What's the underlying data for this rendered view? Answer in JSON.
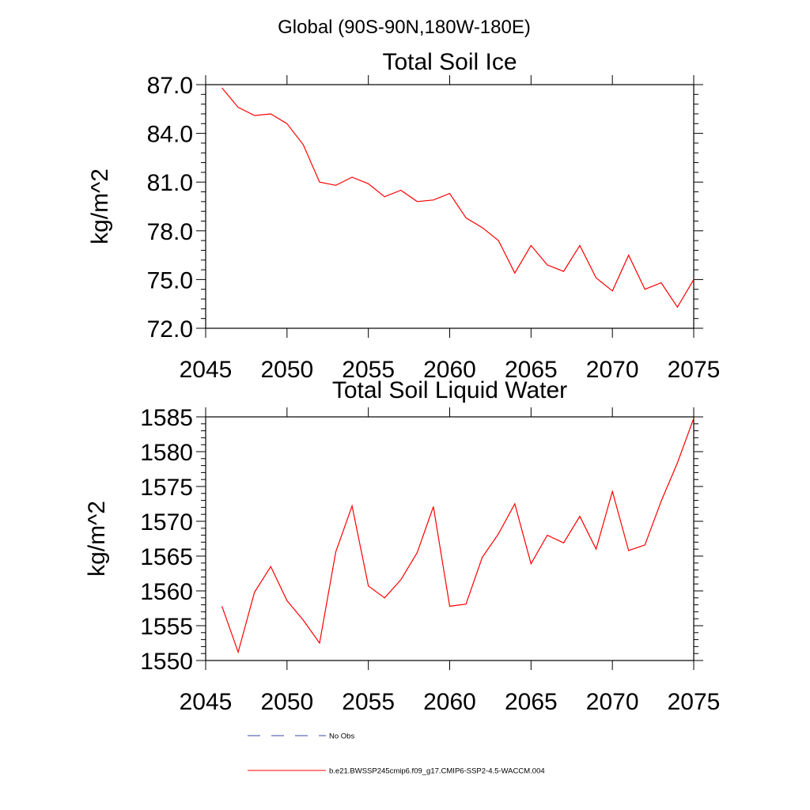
{
  "page": {
    "title": "Global (90S-90N,180W-180E)"
  },
  "legend": [
    {
      "label": "No Obs",
      "color": "#3b4aa0",
      "style": "dashed"
    },
    {
      "label": "b.e21.BWSSP245cmip6.f09_g17.CMIP6-SSP2-4.5-WACCM.004",
      "color": "#ff0000",
      "style": "solid"
    }
  ],
  "chart_data": [
    {
      "type": "line",
      "title": "Total Soil Ice",
      "xlabel": "",
      "ylabel": "kg/m^2",
      "xlim": [
        2045,
        2075
      ],
      "ylim": [
        72,
        87
      ],
      "xticks": [
        "2045",
        "2050",
        "2055",
        "2060",
        "2065",
        "2070",
        "2075"
      ],
      "yticks": [
        "72.0",
        "75.0",
        "78.0",
        "81.0",
        "84.0",
        "87.0"
      ],
      "series": [
        {
          "color": "#ff0000",
          "x": [
            2046,
            2047,
            2048,
            2049,
            2050,
            2051,
            2052,
            2053,
            2054,
            2055,
            2056,
            2057,
            2058,
            2059,
            2060,
            2061,
            2062,
            2063,
            2064,
            2065,
            2066,
            2067,
            2068,
            2069,
            2070,
            2071,
            2072,
            2073,
            2074,
            2075
          ],
          "y": [
            86.8,
            85.6,
            85.1,
            85.2,
            84.6,
            83.3,
            81.0,
            80.8,
            81.3,
            80.9,
            80.1,
            80.5,
            79.8,
            79.9,
            80.3,
            78.8,
            78.2,
            77.4,
            75.4,
            77.1,
            75.9,
            75.5,
            77.1,
            75.1,
            74.3,
            76.5,
            74.4,
            74.8,
            73.3,
            75.0
          ]
        }
      ]
    },
    {
      "type": "line",
      "title": "Total Soil Liquid Water",
      "xlabel": "",
      "ylabel": "kg/m^2",
      "xlim": [
        2045,
        2075
      ],
      "ylim": [
        1550,
        1585
      ],
      "xticks": [
        "2045",
        "2050",
        "2055",
        "2060",
        "2065",
        "2070",
        "2075"
      ],
      "yticks": [
        "1550",
        "1555",
        "1560",
        "1565",
        "1570",
        "1575",
        "1580",
        "1585"
      ],
      "series": [
        {
          "color": "#ff0000",
          "x": [
            2046,
            2047,
            2048,
            2049,
            2050,
            2051,
            2052,
            2053,
            2054,
            2055,
            2056,
            2057,
            2058,
            2059,
            2060,
            2061,
            2062,
            2063,
            2064,
            2065,
            2066,
            2067,
            2068,
            2069,
            2070,
            2071,
            2072,
            2073,
            2074,
            2075
          ],
          "y": [
            1557.8,
            1551.2,
            1559.8,
            1563.5,
            1558.6,
            1555.8,
            1552.5,
            1565.6,
            1572.2,
            1560.7,
            1559.0,
            1561.6,
            1565.5,
            1572.1,
            1557.8,
            1558.1,
            1564.8,
            1568.2,
            1572.5,
            1563.9,
            1568.0,
            1566.9,
            1570.7,
            1566.0,
            1574.3,
            1565.8,
            1566.6,
            1572.9,
            1578.4,
            1584.8
          ]
        }
      ]
    }
  ]
}
